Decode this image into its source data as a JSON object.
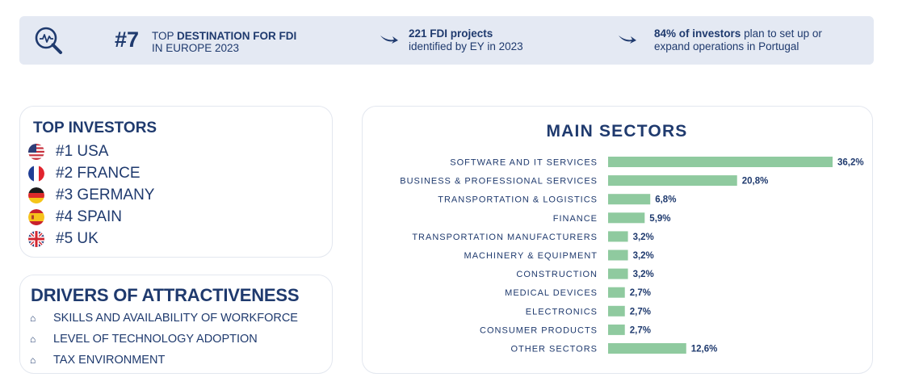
{
  "banner": {
    "rank": "#7",
    "rank_line1_prefix": "TOP",
    "rank_line1_bold": "DESTINATION FOR FDI",
    "rank_line2": "IN EUROPE 2023",
    "stat1_bold": "221 FDI projects",
    "stat1_rest": "identified by EY in 2023",
    "stat2_bold": "84% of investors",
    "stat2_rest_line1": "plan to set up or",
    "stat2_rest_line2": "expand operations in Portugal",
    "icon": "magnifier-chart-icon",
    "arrow_icon": "arrow-right-icon"
  },
  "investors": {
    "title": "TOP INVESTORS",
    "items": [
      {
        "label": "#1 USA",
        "flag": "usa-flag-icon"
      },
      {
        "label": "#2 FRANCE",
        "flag": "france-flag-icon"
      },
      {
        "label": "#3 GERMANY",
        "flag": "germany-flag-icon"
      },
      {
        "label": "#4 SPAIN",
        "flag": "spain-flag-icon"
      },
      {
        "label": "#5 UK",
        "flag": "uk-flag-icon"
      }
    ]
  },
  "drivers": {
    "title": "DRIVERS OF ATTRACTIVENESS",
    "bullet": "⌂",
    "items": [
      "SKILLS AND AVAILABILITY OF WORKFORCE",
      "LEVEL OF TECHNOLOGY ADOPTION",
      "TAX ENVIRONMENT"
    ]
  },
  "colors": {
    "navy": "#1f3a6e",
    "bar": "#8fca9f",
    "banner_bg": "#e4e9f3"
  },
  "chart_data": {
    "type": "bar",
    "orientation": "horizontal",
    "title": "MAIN SECTORS",
    "categories": [
      "SOFTWARE AND IT SERVICES",
      "BUSINESS & PROFESSIONAL SERVICES",
      "TRANSPORTATION & LOGISTICS",
      "FINANCE",
      "TRANSPORTATION MANUFACTURERS",
      "MACHINERY & EQUIPMENT",
      "CONSTRUCTION",
      "MEDICAL DEVICES",
      "ELECTRONICS",
      "CONSUMER PRODUCTS",
      "OTHER SECTORS"
    ],
    "values": [
      36.2,
      20.8,
      6.8,
      5.9,
      3.2,
      3.2,
      3.2,
      2.7,
      2.7,
      2.7,
      12.6
    ],
    "value_labels": [
      "36,2%",
      "20,8%",
      "6,8%",
      "5,9%",
      "3,2%",
      "3,2%",
      "3,2%",
      "2,7%",
      "2,7%",
      "2,7%",
      "12,6%"
    ],
    "xlim": [
      0,
      36.2
    ],
    "grid": false,
    "legend": false
  }
}
